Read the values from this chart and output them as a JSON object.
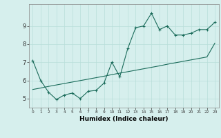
{
  "xlabel": "Humidex (Indice chaleur)",
  "x": [
    0,
    1,
    2,
    3,
    4,
    5,
    6,
    7,
    8,
    9,
    10,
    11,
    12,
    13,
    14,
    15,
    16,
    17,
    18,
    19,
    20,
    21,
    22,
    23
  ],
  "y_line": [
    7.1,
    6.0,
    5.35,
    4.95,
    5.2,
    5.3,
    5.0,
    5.4,
    5.45,
    5.85,
    7.0,
    6.2,
    7.75,
    8.9,
    9.0,
    9.7,
    8.8,
    9.0,
    8.5,
    8.5,
    8.6,
    8.8,
    8.8,
    9.2
  ],
  "y_trend": [
    5.5,
    5.58,
    5.67,
    5.75,
    5.83,
    5.91,
    5.99,
    6.07,
    6.15,
    6.23,
    6.32,
    6.4,
    6.48,
    6.56,
    6.64,
    6.72,
    6.8,
    6.89,
    6.97,
    7.05,
    7.13,
    7.21,
    7.29,
    8.05
  ],
  "line_color": "#1a6b5a",
  "bg_color": "#d6efed",
  "grid_color": "#b8deda",
  "ylim_min": 4.5,
  "ylim_max": 10.2,
  "yticks": [
    5,
    6,
    7,
    8,
    9
  ],
  "xlim_min": -0.5,
  "xlim_max": 23.5
}
